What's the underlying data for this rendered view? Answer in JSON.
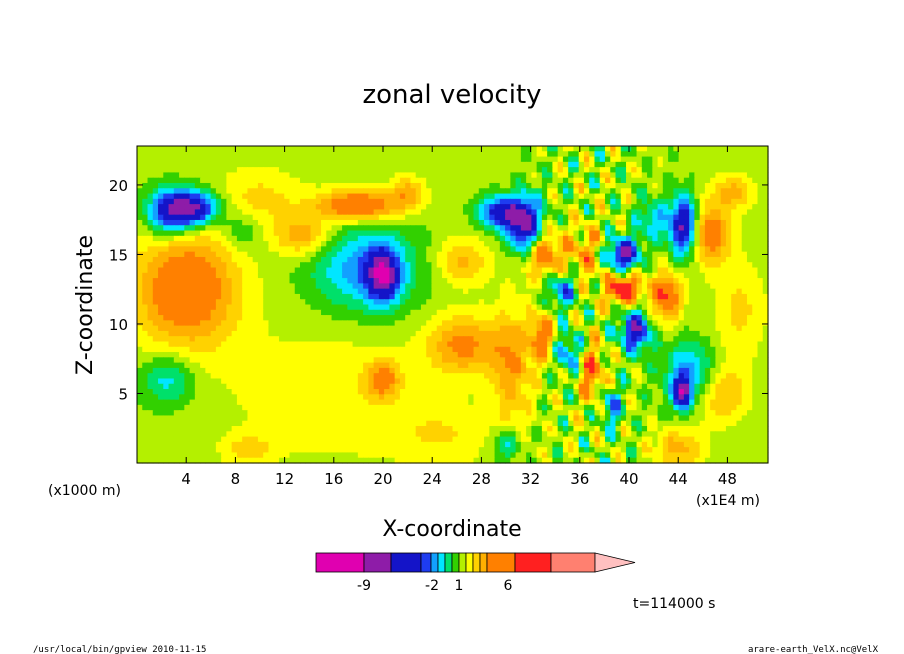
{
  "chart_data": {
    "type": "heatmap",
    "title": "zonal velocity",
    "xlabel": "X-coordinate",
    "ylabel": "Z-coordinate",
    "x_unit_left": "(x1000 m)",
    "x_unit_right": "(x1E4 m)",
    "x_ticks": [
      "4",
      "8",
      "12",
      "16",
      "20",
      "24",
      "28",
      "32",
      "36",
      "40",
      "44",
      "48"
    ],
    "x_tick_values": [
      4,
      8,
      12,
      16,
      20,
      24,
      28,
      32,
      36,
      40,
      44,
      48
    ],
    "xlim": [
      0,
      51.3
    ],
    "y_ticks": [
      "5",
      "10",
      "15",
      "20"
    ],
    "y_tick_values": [
      5,
      10,
      15,
      20
    ],
    "ylim": [
      0,
      22.8
    ],
    "grid": false,
    "colorbar": {
      "labels": [
        "-9",
        "-2",
        "1",
        "6"
      ],
      "label_values": [
        -9,
        -2,
        1,
        6
      ],
      "colors": [
        "#e000b0",
        "#8e1ca8",
        "#1414c8",
        "#1e3cf0",
        "#12a0ff",
        "#00e6ff",
        "#00e06a",
        "#32d000",
        "#b4f000",
        "#ffff00",
        "#ffd200",
        "#ffb000",
        "#ff8000",
        "#ff2020",
        "#ff8070",
        "#ffc0c0"
      ]
    },
    "fields": [
      {
        "x": 4,
        "y": 12.5,
        "v": 5.5,
        "sx": 3.0,
        "sy": 3.0
      },
      {
        "x": 2.5,
        "y": 18,
        "v": -5,
        "sx": 1.3,
        "sy": 1.2
      },
      {
        "x": 4.5,
        "y": 18.3,
        "v": -8,
        "sx": 1.5,
        "sy": 0.9
      },
      {
        "x": 2.5,
        "y": 6,
        "v": -3,
        "sx": 1.5,
        "sy": 1.3
      },
      {
        "x": 8.5,
        "y": 16.7,
        "v": -2,
        "sx": 1.2,
        "sy": 1.0
      },
      {
        "x": 10,
        "y": 19,
        "v": 2,
        "sx": 2.5,
        "sy": 1.6
      },
      {
        "x": 13.5,
        "y": 16.3,
        "v": 3.5,
        "sx": 1.6,
        "sy": 1.0
      },
      {
        "x": 18.5,
        "y": 14,
        "v": -4,
        "sx": 3.0,
        "sy": 2.2
      },
      {
        "x": 20,
        "y": 13.5,
        "v": -7,
        "sx": 0.9,
        "sy": 1.3
      },
      {
        "x": 18,
        "y": 18.5,
        "v": 6,
        "sx": 2.4,
        "sy": 0.8
      },
      {
        "x": 22,
        "y": 19.5,
        "v": 3,
        "sx": 1.0,
        "sy": 0.8
      },
      {
        "x": 26.5,
        "y": 14.5,
        "v": 3,
        "sx": 1.5,
        "sy": 1.2
      },
      {
        "x": 16,
        "y": 5,
        "v": 1.5,
        "sx": 6,
        "sy": 3.5
      },
      {
        "x": 20,
        "y": 6,
        "v": 4,
        "sx": 0.9,
        "sy": 0.9
      },
      {
        "x": 26.5,
        "y": 8.5,
        "v": 4,
        "sx": 2.0,
        "sy": 1.5
      },
      {
        "x": 30.5,
        "y": 7,
        "v": 3.5,
        "sx": 1.2,
        "sy": 3.0
      },
      {
        "x": 29.5,
        "y": 18,
        "v": -6,
        "sx": 1.2,
        "sy": 0.8
      },
      {
        "x": 31.5,
        "y": 17,
        "v": -8,
        "sx": 1.0,
        "sy": 1.5
      },
      {
        "x": 33,
        "y": 15,
        "v": 5,
        "sx": 1.3,
        "sy": 1.2
      },
      {
        "x": 34.5,
        "y": 12.5,
        "v": -4,
        "sx": 0.9,
        "sy": 1.0
      },
      {
        "x": 36.5,
        "y": 15,
        "v": 3,
        "sx": 1.0,
        "sy": 1.5
      },
      {
        "x": 33,
        "y": 9,
        "v": 5,
        "sx": 0.7,
        "sy": 1.2
      },
      {
        "x": 35,
        "y": 8,
        "v": -4,
        "sx": 0.8,
        "sy": 1.0
      },
      {
        "x": 37,
        "y": 6.5,
        "v": 5,
        "sx": 0.7,
        "sy": 1.5
      },
      {
        "x": 38.5,
        "y": 4,
        "v": -4,
        "sx": 0.6,
        "sy": 1.0
      },
      {
        "x": 39.5,
        "y": 12.5,
        "v": 7,
        "sx": 1.0,
        "sy": 0.8
      },
      {
        "x": 39.5,
        "y": 15,
        "v": -8,
        "sx": 0.9,
        "sy": 0.8
      },
      {
        "x": 40.5,
        "y": 9.5,
        "v": -7,
        "sx": 0.9,
        "sy": 1.0
      },
      {
        "x": 42,
        "y": 17.5,
        "v": -3,
        "sx": 1.0,
        "sy": 1.0
      },
      {
        "x": 43,
        "y": 12,
        "v": 6,
        "sx": 0.9,
        "sy": 1.2
      },
      {
        "x": 44.5,
        "y": 17,
        "v": -8,
        "sx": 0.8,
        "sy": 1.5
      },
      {
        "x": 46.5,
        "y": 16.5,
        "v": 5,
        "sx": 1.2,
        "sy": 1.5
      },
      {
        "x": 45,
        "y": 6.5,
        "v": -4,
        "sx": 1.5,
        "sy": 1.5
      },
      {
        "x": 44.3,
        "y": 5,
        "v": -8,
        "sx": 0.5,
        "sy": 0.8
      },
      {
        "x": 47.5,
        "y": 5,
        "v": 3,
        "sx": 1.5,
        "sy": 1.5
      },
      {
        "x": 49,
        "y": 11,
        "v": 2,
        "sx": 1.5,
        "sy": 2.5
      },
      {
        "x": 48.5,
        "y": 19.5,
        "v": 3,
        "sx": 1.2,
        "sy": 0.9
      },
      {
        "x": 44,
        "y": 1,
        "v": 3,
        "sx": 1.5,
        "sy": 1.0
      },
      {
        "x": 30,
        "y": 1.3,
        "v": -3,
        "sx": 0.8,
        "sy": 0.8
      },
      {
        "x": 9,
        "y": 1,
        "v": 2,
        "sx": 1.5,
        "sy": 0.8
      },
      {
        "x": 25,
        "y": 2,
        "v": 1.5,
        "sx": 3,
        "sy": 1.5
      }
    ]
  },
  "annotations": {
    "time": "t=114000 s",
    "footer_left": "/usr/local/bin/gpview  2010-11-15",
    "footer_right": "arare-earth_VelX.nc@VelX"
  }
}
